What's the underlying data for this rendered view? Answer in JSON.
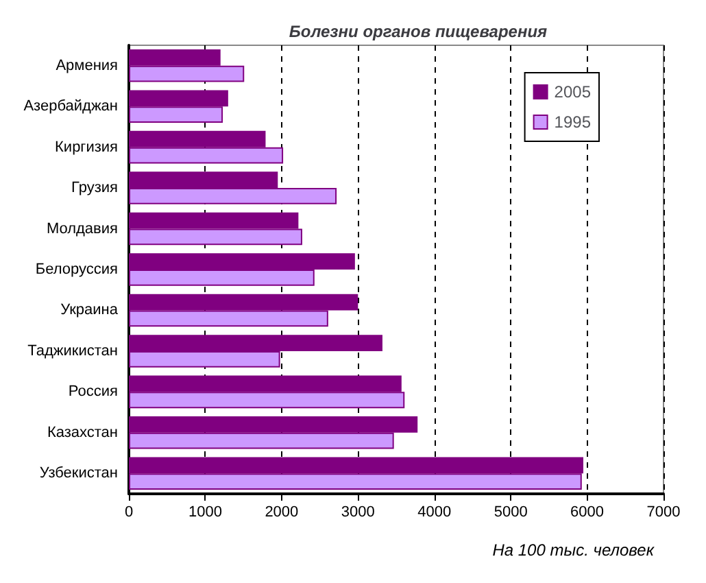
{
  "chart_data": {
    "type": "bar",
    "orientation": "horizontal",
    "title": "Болезни органов пищеварения",
    "xlabel": "На 100 тыс. человек",
    "categories": [
      "Армения",
      "Азербайджан",
      "Киргизия",
      "Грузия",
      "Молдавия",
      "Белоруссия",
      "Украина",
      "Таджикистан",
      "Россия",
      "Казахстан",
      "Узбекистан"
    ],
    "series": [
      {
        "name": "2005",
        "color": "#800080",
        "values": [
          1200,
          1300,
          1790,
          1950,
          2220,
          2960,
          3000,
          3320,
          3570,
          3780,
          5950
        ]
      },
      {
        "name": "1995",
        "color": "#cc99ff",
        "values": [
          1510,
          1230,
          2020,
          2720,
          2270,
          2430,
          2610,
          1980,
          3610,
          3470,
          5930
        ]
      }
    ],
    "xlim": [
      0,
      7000
    ],
    "xticks": [
      0,
      1000,
      2000,
      3000,
      4000,
      5000,
      6000,
      7000
    ],
    "grid": "x",
    "legend": "top right"
  }
}
